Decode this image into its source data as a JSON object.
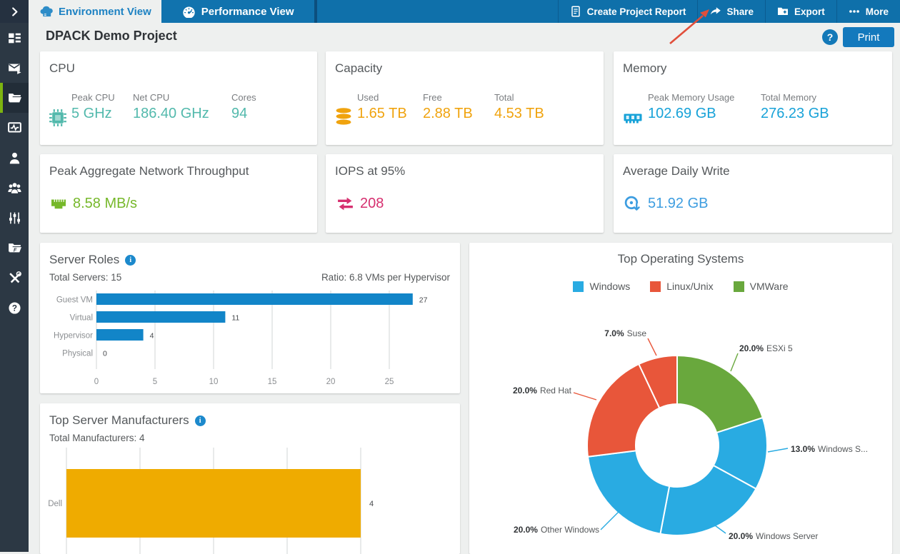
{
  "topbar": {
    "tabs": [
      {
        "label": "Environment View",
        "icon": "cloud-server",
        "active": true
      },
      {
        "label": "Performance View",
        "icon": "gauge",
        "active": false
      }
    ],
    "actions": [
      {
        "label": "Create Project Report",
        "icon": "report-document"
      },
      {
        "label": "Share",
        "icon": "share-arrow"
      },
      {
        "label": "Export",
        "icon": "export-folder"
      },
      {
        "label": "More",
        "icon": "more-ellipsis"
      }
    ]
  },
  "sidebar": {
    "collapse_icon": "chevron-right",
    "items": [
      {
        "name": "dashboard",
        "active": false
      },
      {
        "name": "email-report",
        "active": false
      },
      {
        "name": "projects",
        "active": true
      },
      {
        "name": "performance-monitor",
        "active": false
      },
      {
        "name": "user",
        "active": false
      },
      {
        "name": "team",
        "active": false
      },
      {
        "name": "preferences-sliders",
        "active": false
      },
      {
        "name": "shared-projects",
        "active": false
      },
      {
        "name": "tools",
        "active": false
      },
      {
        "name": "help",
        "active": false
      }
    ]
  },
  "header": {
    "title": "DPACK Demo Project",
    "help_label": "?",
    "print_label": "Print"
  },
  "annotation_arrow": {
    "color": "#e14f3b",
    "points_to": "Share"
  },
  "stat_cards": {
    "cpu": {
      "title": "CPU",
      "icon": "cpu-chip",
      "color": "#52b9ac",
      "stats": [
        {
          "label": "Peak CPU",
          "value": "5 GHz"
        },
        {
          "label": "Net CPU",
          "value": "186.40 GHz"
        },
        {
          "label": "Cores",
          "value": "94"
        }
      ]
    },
    "capacity": {
      "title": "Capacity",
      "icon": "storage-disks",
      "color": "#f0a30e",
      "stats": [
        {
          "label": "Used",
          "value": "1.65 TB"
        },
        {
          "label": "Free",
          "value": "2.88 TB"
        },
        {
          "label": "Total",
          "value": "4.53 TB"
        }
      ]
    },
    "memory": {
      "title": "Memory",
      "icon": "ram-module",
      "color": "#17a2d8",
      "stats": [
        {
          "label": "Peak Memory Usage",
          "value": "102.69 GB"
        },
        {
          "label": "Total Memory",
          "value": "276.23 GB"
        }
      ]
    },
    "network": {
      "title": "Peak Aggregate Network Throughput",
      "icon": "ethernet-port",
      "color": "#76b82a",
      "value": "8.58 MB/s"
    },
    "iops": {
      "title": "IOPS at 95%",
      "icon": "transfer-arrows",
      "color": "#d62f6f",
      "value": "208"
    },
    "daily_write": {
      "title": "Average Daily Write",
      "icon": "disc-write",
      "color": "#3d9de0",
      "value": "51.92 GB"
    }
  },
  "server_roles": {
    "title": "Server Roles",
    "total_label": "Total Servers: 15",
    "ratio_label": "Ratio: 6.8 VMs per Hypervisor",
    "chart_data": {
      "type": "bar",
      "orientation": "horizontal",
      "categories": [
        "Guest VM",
        "Virtual",
        "Hypervisor",
        "Physical"
      ],
      "values": [
        27,
        11,
        4,
        0
      ],
      "xticks": [
        0,
        5,
        10,
        15,
        20,
        25
      ],
      "xlim": [
        0,
        26.5
      ],
      "bar_color": "#1285c8",
      "grid": true
    }
  },
  "manufacturers": {
    "title": "Top Server Manufacturers",
    "total_label": "Total Manufacturers: 4",
    "chart_data": {
      "type": "bar",
      "orientation": "horizontal",
      "categories": [
        "Dell"
      ],
      "values": [
        4
      ],
      "gridline_values": [
        0,
        1,
        2,
        3,
        4
      ],
      "xlim": [
        0,
        4.6
      ],
      "bar_color": "#efab00",
      "grid": true
    }
  },
  "top_os": {
    "title": "Top Operating Systems",
    "legend": [
      {
        "label": "Windows",
        "color": "#29abe2"
      },
      {
        "label": "Linux/Unix",
        "color": "#e8563a"
      },
      {
        "label": "VMWare",
        "color": "#69a83d"
      }
    ],
    "chart_data": {
      "type": "pie",
      "donut": true,
      "slices": [
        {
          "name": "ESXi 5",
          "pct": 20.0,
          "color": "#69a83d"
        },
        {
          "name": "Windows S...",
          "pct": 13.0,
          "color": "#29abe2"
        },
        {
          "name": "Windows Server",
          "pct": 20.0,
          "color": "#29abe2"
        },
        {
          "name": "Other Windows",
          "pct": 20.0,
          "color": "#29abe2"
        },
        {
          "name": "Red Hat",
          "pct": 20.0,
          "color": "#e8563a"
        },
        {
          "name": "Suse",
          "pct": 7.0,
          "color": "#e8563a"
        }
      ]
    }
  }
}
